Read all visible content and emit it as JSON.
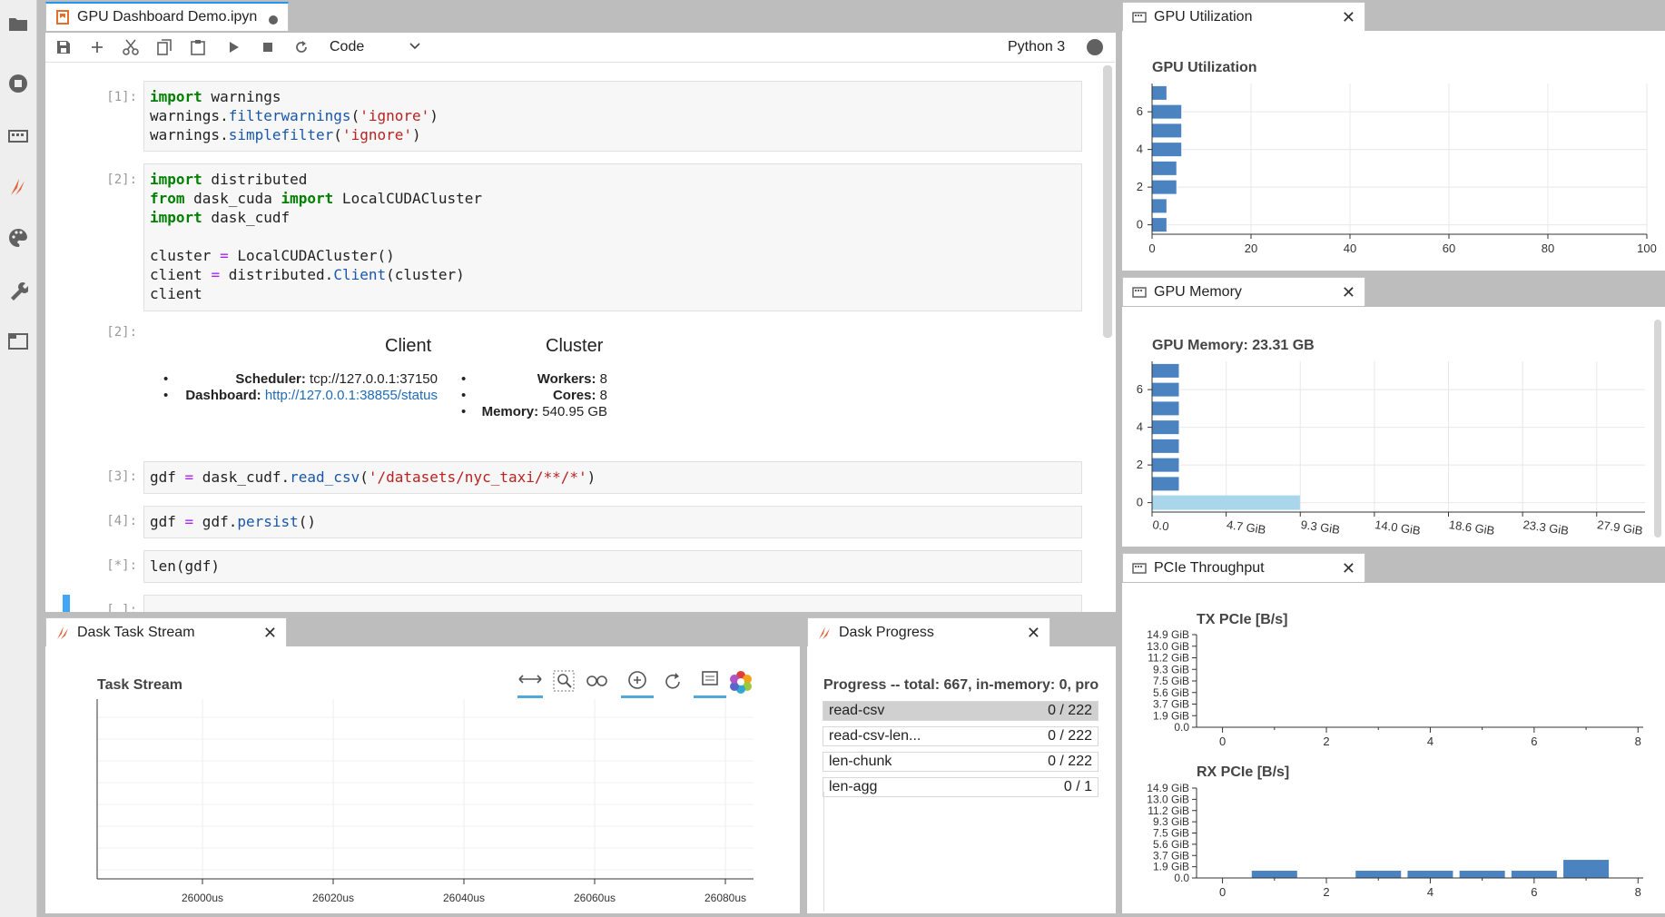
{
  "left_bar": {
    "icons": [
      "folder-icon",
      "running-icon",
      "commands-icon",
      "dask-icon",
      "palette-icon",
      "wrench-icon",
      "tabs-icon"
    ]
  },
  "notebook": {
    "tab_title": "GPU Dashboard Demo.ipyn",
    "toolbar": {
      "cell_type": "Code",
      "kernel": "Python 3"
    },
    "cells": [
      {
        "prompt": "[1]:"
      },
      {
        "prompt": "[2]:"
      },
      {
        "prompt": "[2]:"
      },
      {
        "prompt": "[3]:"
      },
      {
        "prompt": "[4]:"
      },
      {
        "prompt": "[*]:"
      },
      {
        "prompt": "[ ]:"
      }
    ],
    "output": {
      "client_heading": "Client",
      "cluster_heading": "Cluster",
      "scheduler_label": "Scheduler:",
      "scheduler_value": "tcp://127.0.0.1:37150",
      "dashboard_label": "Dashboard:",
      "dashboard_value": "http://127.0.0.1:38855/status",
      "workers_label": "Workers:",
      "workers_value": "8",
      "cores_label": "Cores:",
      "cores_value": "8",
      "memory_label": "Memory:",
      "memory_value": "540.95 GB"
    }
  },
  "panels": {
    "gpu_util": {
      "tab": "GPU Utilization",
      "title": "GPU Utilization"
    },
    "gpu_mem": {
      "tab": "GPU Memory",
      "title": "GPU Memory: 23.31 GB"
    },
    "pcie": {
      "tab": "PCIe Throughput",
      "tx_title": "TX PCIe [B/s]",
      "rx_title": "RX PCIe [B/s]"
    },
    "task_stream": {
      "tab": "Dask Task Stream",
      "title": "Task Stream"
    },
    "progress": {
      "tab": "Dask Progress",
      "header": "Progress -- total: 667, in-memory: 0, pro",
      "rows": [
        {
          "name": "read-csv",
          "value": "0 / 222"
        },
        {
          "name": "read-csv-len...",
          "value": "0 / 222"
        },
        {
          "name": "len-chunk",
          "value": "0 / 222"
        },
        {
          "name": "len-agg",
          "value": "0 / 1"
        }
      ]
    }
  },
  "chart_data": [
    {
      "type": "bar",
      "orientation": "horizontal",
      "title": "GPU Utilization",
      "categories": [
        0,
        1,
        2,
        3,
        4,
        5,
        6,
        7
      ],
      "values": [
        3,
        3,
        5,
        5,
        6,
        6,
        6,
        3
      ],
      "xlim": [
        0,
        100
      ],
      "ylim": [
        -0.5,
        7.5
      ],
      "x_ticks": [
        "0",
        "20",
        "40",
        "60",
        "80",
        "100"
      ],
      "y_ticks": [
        "0",
        "2",
        "4",
        "6"
      ],
      "grid": true,
      "color": "#4b82c0"
    },
    {
      "type": "bar",
      "orientation": "horizontal",
      "title": "GPU Memory: 23.31 GB",
      "categories": [
        0,
        1,
        2,
        3,
        4,
        5,
        6,
        7
      ],
      "values": [
        0.5,
        0.5,
        0.5,
        0.5,
        0.5,
        0.5,
        0.5,
        0.5
      ],
      "background_total": 9.3,
      "unit": "GiB",
      "xlim": [
        0,
        31
      ],
      "ylim": [
        -0.5,
        7.5
      ],
      "x_ticks": [
        "0.0",
        "4.7 GiB",
        "9.3 GiB",
        "14.0 GiB",
        "18.6 GiB",
        "23.3 GiB",
        "27.9 GiB"
      ],
      "y_ticks": [
        "0",
        "2",
        "4",
        "6"
      ],
      "grid": true,
      "color": "#4b82c0",
      "background_color": "#a9d6ea"
    },
    {
      "type": "bar",
      "title": "TX PCIe [B/s]",
      "categories": [
        0,
        1,
        2,
        3,
        4,
        5,
        6,
        7,
        8
      ],
      "values": [
        0,
        0,
        0,
        0,
        0,
        0,
        0,
        0,
        0
      ],
      "xlim": [
        -0.5,
        8.1
      ],
      "y_ticks": [
        "0.0",
        "1.9 GiB",
        "3.7 GiB",
        "5.6 GiB",
        "7.5 GiB",
        "9.3 GiB",
        "11.2 GiB",
        "13.0 GiB",
        "14.9 GiB"
      ],
      "x_ticks": [
        "0",
        "2",
        "4",
        "6",
        "8"
      ],
      "color": "#4b82c0"
    },
    {
      "type": "bar",
      "title": "RX PCIe [B/s]",
      "categories": [
        0,
        1,
        2,
        3,
        4,
        5,
        6,
        7,
        8
      ],
      "values": [
        0,
        0.02,
        0,
        0.02,
        0.02,
        0.02,
        0.02,
        0.05,
        0
      ],
      "xlim": [
        -0.5,
        8.1
      ],
      "y_ticks": [
        "0.0",
        "1.9 GiB",
        "3.7 GiB",
        "5.6 GiB",
        "7.5 GiB",
        "9.3 GiB",
        "11.2 GiB",
        "13.0 GiB",
        "14.9 GiB"
      ],
      "x_ticks": [
        "0",
        "2",
        "4",
        "6",
        "8"
      ],
      "color": "#4b82c0"
    },
    {
      "type": "scatter",
      "title": "Task Stream",
      "x_ticks": [
        "26000us",
        "26020us",
        "26040us",
        "26060us",
        "26080us"
      ],
      "points": [],
      "grid": true
    }
  ]
}
